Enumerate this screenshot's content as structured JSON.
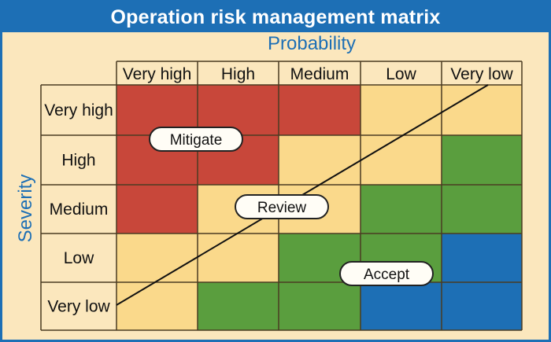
{
  "title": "Operation risk management matrix",
  "x_axis_title": "Probability",
  "y_axis_title": "Severity",
  "probability_levels": [
    "Very high",
    "High",
    "Medium",
    "Low",
    "Very low"
  ],
  "severity_levels": [
    "Very high",
    "High",
    "Medium",
    "Low",
    "Very low"
  ],
  "zones": {
    "mitigate": {
      "label": "Mitigate",
      "color": "#c8473a"
    },
    "review": {
      "label": "Review",
      "color": "#fad98b"
    },
    "accept_green": {
      "label": "Accept",
      "color": "#5a9e3e"
    },
    "accept_blue": {
      "label": "Accept",
      "color": "#1d6fb5"
    }
  },
  "cells": [
    [
      "mitigate",
      "mitigate",
      "mitigate",
      "review",
      "review"
    ],
    [
      "mitigate",
      "mitigate",
      "review",
      "review",
      "accept_green"
    ],
    [
      "mitigate",
      "review",
      "review",
      "accept_green",
      "accept_green"
    ],
    [
      "review",
      "review",
      "accept_green",
      "accept_green",
      "accept_blue"
    ],
    [
      "review",
      "accept_green",
      "accept_green",
      "accept_blue",
      "accept_blue"
    ]
  ],
  "region_labels": {
    "mitigate": "Mitigate",
    "review": "Review",
    "accept": "Accept"
  },
  "colors": {
    "frame": "#1d6fb5",
    "background": "#fbe7bd",
    "header_fill": "#fbe7bd"
  }
}
